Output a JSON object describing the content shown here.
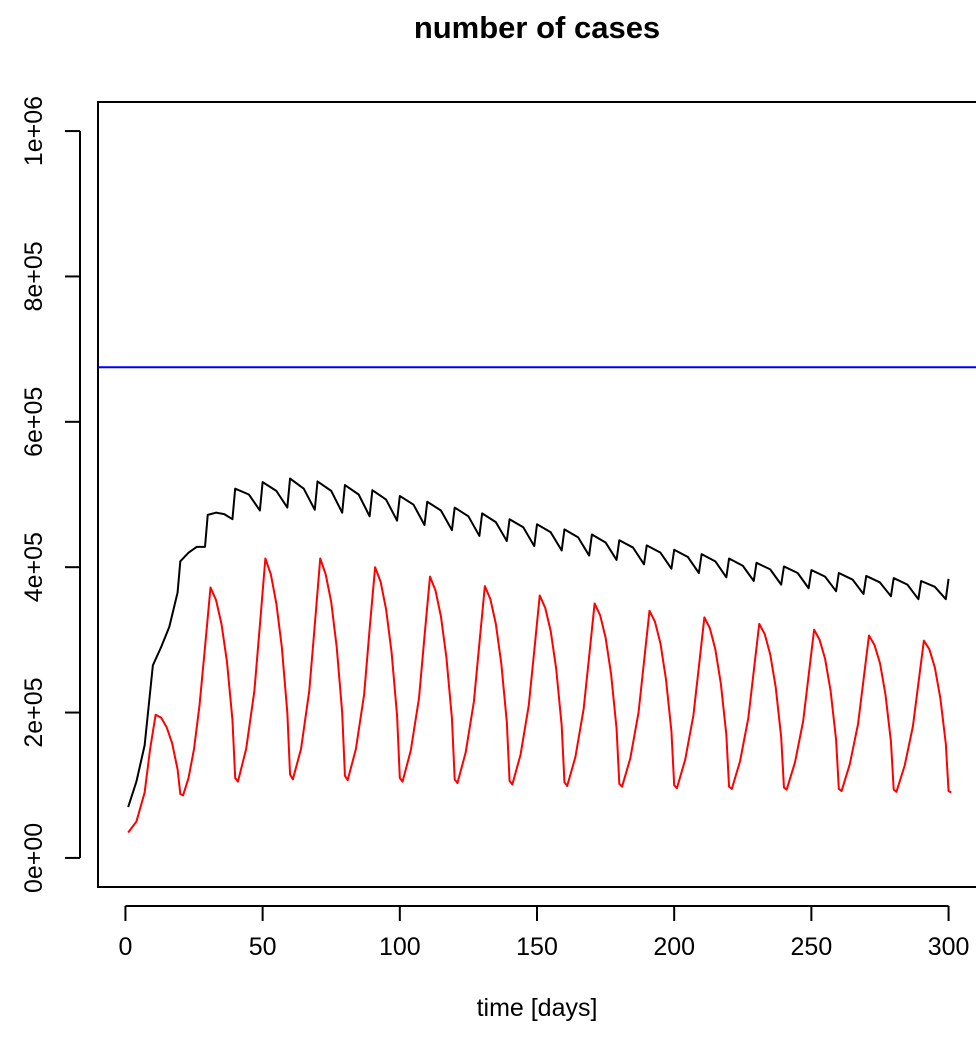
{
  "chart_data": {
    "type": "line",
    "title": "number of cases",
    "xlabel": "time [days]",
    "ylabel": "",
    "xlim": [
      -10,
      310
    ],
    "ylim": [
      -40000,
      1040000
    ],
    "x_ticks": [
      0,
      50,
      100,
      150,
      200,
      250,
      300
    ],
    "x_tick_labels": [
      "0",
      "50",
      "100",
      "150",
      "200",
      "250",
      "300"
    ],
    "y_ticks": [
      0,
      200000,
      400000,
      600000,
      800000,
      1000000
    ],
    "y_tick_labels": [
      "0e+00",
      "2e+05",
      "4e+05",
      "6e+05",
      "8e+05",
      "1e+06"
    ],
    "grid": false,
    "legend": "none",
    "series": [
      {
        "color": "#0000ff",
        "points": [
          [
            -10,
            675000
          ],
          [
            310,
            675000
          ]
        ]
      },
      {
        "color": "#000000",
        "points": [
          [
            1,
            70000
          ],
          [
            4,
            105000
          ],
          [
            7,
            155000
          ],
          [
            10,
            265000
          ],
          [
            13,
            290000
          ],
          [
            16,
            318000
          ],
          [
            19,
            365000
          ],
          [
            20,
            408000
          ],
          [
            23,
            420000
          ],
          [
            26,
            428000
          ],
          [
            29,
            428000
          ],
          [
            30,
            472000
          ],
          [
            33,
            475000
          ],
          [
            36,
            473000
          ],
          [
            39,
            466000
          ],
          [
            40,
            508000
          ],
          [
            45,
            500000
          ],
          [
            49,
            478000
          ],
          [
            50,
            517000
          ],
          [
            55,
            505000
          ],
          [
            59,
            482000
          ],
          [
            60,
            522000
          ],
          [
            65,
            508000
          ],
          [
            69,
            479000
          ],
          [
            70,
            518000
          ],
          [
            75,
            505000
          ],
          [
            79,
            475000
          ],
          [
            80,
            513000
          ],
          [
            85,
            500000
          ],
          [
            89,
            470000
          ],
          [
            90,
            506000
          ],
          [
            95,
            493000
          ],
          [
            99,
            464000
          ],
          [
            100,
            498000
          ],
          [
            105,
            486000
          ],
          [
            109,
            458000
          ],
          [
            110,
            490000
          ],
          [
            115,
            478000
          ],
          [
            119,
            451000
          ],
          [
            120,
            482000
          ],
          [
            125,
            470000
          ],
          [
            129,
            443000
          ],
          [
            130,
            474000
          ],
          [
            135,
            462000
          ],
          [
            139,
            436000
          ],
          [
            140,
            466000
          ],
          [
            145,
            455000
          ],
          [
            149,
            429000
          ],
          [
            150,
            459000
          ],
          [
            155,
            448000
          ],
          [
            159,
            423000
          ],
          [
            160,
            452000
          ],
          [
            165,
            441000
          ],
          [
            169,
            416000
          ],
          [
            170,
            445000
          ],
          [
            175,
            434000
          ],
          [
            179,
            410000
          ],
          [
            180,
            437000
          ],
          [
            185,
            427000
          ],
          [
            189,
            404000
          ],
          [
            190,
            430000
          ],
          [
            195,
            420000
          ],
          [
            199,
            398000
          ],
          [
            200,
            424000
          ],
          [
            205,
            414000
          ],
          [
            209,
            392000
          ],
          [
            210,
            418000
          ],
          [
            215,
            408000
          ],
          [
            219,
            386000
          ],
          [
            220,
            412000
          ],
          [
            225,
            402000
          ],
          [
            229,
            381000
          ],
          [
            230,
            406000
          ],
          [
            235,
            397000
          ],
          [
            239,
            376000
          ],
          [
            240,
            401000
          ],
          [
            245,
            392000
          ],
          [
            249,
            371000
          ],
          [
            250,
            396000
          ],
          [
            255,
            387000
          ],
          [
            259,
            367000
          ],
          [
            260,
            392000
          ],
          [
            265,
            383000
          ],
          [
            269,
            363000
          ],
          [
            270,
            388000
          ],
          [
            275,
            379000
          ],
          [
            279,
            360000
          ],
          [
            280,
            385000
          ],
          [
            285,
            376000
          ],
          [
            289,
            356000
          ],
          [
            290,
            381000
          ],
          [
            295,
            373000
          ],
          [
            299,
            356000
          ],
          [
            300,
            384000
          ]
        ]
      },
      {
        "color": "#ff0000",
        "points": [
          [
            1,
            35000
          ],
          [
            4,
            50000
          ],
          [
            7,
            90000
          ],
          [
            9,
            150000
          ],
          [
            11,
            197000
          ],
          [
            13,
            193000
          ],
          [
            15,
            180000
          ],
          [
            17,
            158000
          ],
          [
            19,
            122000
          ],
          [
            20,
            88000
          ],
          [
            21,
            86000
          ],
          [
            23,
            110000
          ],
          [
            25,
            150000
          ],
          [
            27,
            210000
          ],
          [
            29,
            290000
          ],
          [
            31,
            372000
          ],
          [
            33,
            355000
          ],
          [
            35,
            322000
          ],
          [
            37,
            270000
          ],
          [
            39,
            190000
          ],
          [
            40,
            110000
          ],
          [
            41,
            105000
          ],
          [
            44,
            150000
          ],
          [
            47,
            230000
          ],
          [
            49,
            320000
          ],
          [
            51,
            412000
          ],
          [
            53,
            390000
          ],
          [
            55,
            350000
          ],
          [
            57,
            290000
          ],
          [
            59,
            200000
          ],
          [
            60,
            115000
          ],
          [
            61,
            108000
          ],
          [
            64,
            150000
          ],
          [
            67,
            230000
          ],
          [
            69,
            320000
          ],
          [
            71,
            412000
          ],
          [
            73,
            390000
          ],
          [
            75,
            352000
          ],
          [
            77,
            290000
          ],
          [
            79,
            200000
          ],
          [
            80,
            113000
          ],
          [
            81,
            107000
          ],
          [
            84,
            150000
          ],
          [
            87,
            225000
          ],
          [
            89,
            315000
          ],
          [
            91,
            400000
          ],
          [
            93,
            380000
          ],
          [
            95,
            342000
          ],
          [
            97,
            283000
          ],
          [
            99,
            196000
          ],
          [
            100,
            110000
          ],
          [
            101,
            105000
          ],
          [
            104,
            148000
          ],
          [
            107,
            220000
          ],
          [
            109,
            305000
          ],
          [
            111,
            387000
          ],
          [
            113,
            368000
          ],
          [
            115,
            332000
          ],
          [
            117,
            275000
          ],
          [
            119,
            192000
          ],
          [
            120,
            108000
          ],
          [
            121,
            103000
          ],
          [
            124,
            145000
          ],
          [
            127,
            215000
          ],
          [
            129,
            295000
          ],
          [
            131,
            374000
          ],
          [
            133,
            356000
          ],
          [
            135,
            322000
          ],
          [
            137,
            267000
          ],
          [
            139,
            187000
          ],
          [
            140,
            106000
          ],
          [
            141,
            101000
          ],
          [
            144,
            142000
          ],
          [
            147,
            210000
          ],
          [
            149,
            285000
          ],
          [
            151,
            361000
          ],
          [
            153,
            344000
          ],
          [
            155,
            312000
          ],
          [
            157,
            260000
          ],
          [
            159,
            182000
          ],
          [
            160,
            104000
          ],
          [
            161,
            99000
          ],
          [
            164,
            139000
          ],
          [
            167,
            205000
          ],
          [
            169,
            277000
          ],
          [
            171,
            350000
          ],
          [
            173,
            334000
          ],
          [
            175,
            303000
          ],
          [
            177,
            253000
          ],
          [
            179,
            178000
          ],
          [
            180,
            102000
          ],
          [
            181,
            98000
          ],
          [
            184,
            137000
          ],
          [
            187,
            200000
          ],
          [
            189,
            270000
          ],
          [
            191,
            340000
          ],
          [
            193,
            325000
          ],
          [
            195,
            295000
          ],
          [
            197,
            246000
          ],
          [
            199,
            174000
          ],
          [
            200,
            100000
          ],
          [
            201,
            96000
          ],
          [
            204,
            135000
          ],
          [
            207,
            196000
          ],
          [
            209,
            263000
          ],
          [
            211,
            331000
          ],
          [
            213,
            316000
          ],
          [
            215,
            287000
          ],
          [
            217,
            240000
          ],
          [
            219,
            170000
          ],
          [
            220,
            98000
          ],
          [
            221,
            95000
          ],
          [
            224,
            133000
          ],
          [
            227,
            192000
          ],
          [
            229,
            257000
          ],
          [
            231,
            322000
          ],
          [
            233,
            308000
          ],
          [
            235,
            280000
          ],
          [
            237,
            235000
          ],
          [
            239,
            166000
          ],
          [
            240,
            97000
          ],
          [
            241,
            94000
          ],
          [
            244,
            131000
          ],
          [
            247,
            188000
          ],
          [
            249,
            251000
          ],
          [
            251,
            314000
          ],
          [
            253,
            300000
          ],
          [
            255,
            274000
          ],
          [
            257,
            230000
          ],
          [
            259,
            163000
          ],
          [
            260,
            95000
          ],
          [
            261,
            92000
          ],
          [
            264,
            129000
          ],
          [
            267,
            184000
          ],
          [
            269,
            245000
          ],
          [
            271,
            306000
          ],
          [
            273,
            293000
          ],
          [
            275,
            268000
          ],
          [
            277,
            225000
          ],
          [
            279,
            160000
          ],
          [
            280,
            94000
          ],
          [
            281,
            91000
          ],
          [
            284,
            127000
          ],
          [
            287,
            181000
          ],
          [
            289,
            240000
          ],
          [
            291,
            299000
          ],
          [
            293,
            287000
          ],
          [
            295,
            262000
          ],
          [
            297,
            220000
          ],
          [
            299,
            157000
          ],
          [
            300,
            92000
          ],
          [
            301,
            90000
          ]
        ]
      }
    ]
  }
}
